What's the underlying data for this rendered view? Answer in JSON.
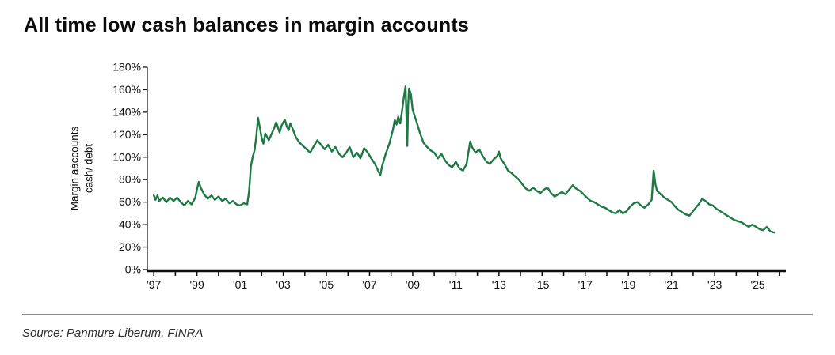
{
  "title": "All time low cash balances in margin accounts",
  "source": "Source: Panmure Liberum, FINRA",
  "chart_data": {
    "type": "line",
    "title": "All time low cash balances in margin accounts",
    "xlabel": "",
    "ylabel": "Margin aaccounts\ncash/ debt",
    "ylim": [
      0,
      180
    ],
    "xlim": [
      1996.7,
      2026.3
    ],
    "grid": false,
    "legend": null,
    "line_color": "#1e7a45",
    "y_ticks": [
      "0%",
      "20%",
      "40%",
      "60%",
      "80%",
      "100%",
      "120%",
      "140%",
      "160%",
      "180%"
    ],
    "x_tick_years": [
      1997,
      1999,
      2001,
      2003,
      2005,
      2007,
      2009,
      2011,
      2013,
      2015,
      2017,
      2019,
      2021,
      2023,
      2025
    ],
    "x_tick_labels": [
      "'97",
      "'99",
      "'01",
      "'03",
      "'05",
      "'07",
      "'09",
      "'11",
      "'13",
      "'15",
      "'17",
      "'19",
      "'21",
      "'23",
      "'25"
    ],
    "series": [
      {
        "name": "Margin accounts cash/debt",
        "points": [
          [
            1997.0,
            66
          ],
          [
            1997.08,
            62
          ],
          [
            1997.17,
            66
          ],
          [
            1997.25,
            61
          ],
          [
            1997.42,
            64
          ],
          [
            1997.58,
            60
          ],
          [
            1997.75,
            64
          ],
          [
            1997.92,
            61
          ],
          [
            1998.08,
            64
          ],
          [
            1998.25,
            60
          ],
          [
            1998.42,
            57
          ],
          [
            1998.58,
            61
          ],
          [
            1998.75,
            58
          ],
          [
            1998.92,
            64
          ],
          [
            1999.0,
            71
          ],
          [
            1999.08,
            78
          ],
          [
            1999.17,
            73
          ],
          [
            1999.33,
            67
          ],
          [
            1999.5,
            63
          ],
          [
            1999.67,
            66
          ],
          [
            1999.83,
            62
          ],
          [
            2000.0,
            65
          ],
          [
            2000.17,
            61
          ],
          [
            2000.33,
            63
          ],
          [
            2000.5,
            59
          ],
          [
            2000.67,
            61
          ],
          [
            2000.83,
            58
          ],
          [
            2001.0,
            57
          ],
          [
            2001.17,
            59
          ],
          [
            2001.33,
            58
          ],
          [
            2001.42,
            70
          ],
          [
            2001.5,
            92
          ],
          [
            2001.58,
            100
          ],
          [
            2001.67,
            106
          ],
          [
            2001.75,
            118
          ],
          [
            2001.83,
            135
          ],
          [
            2001.92,
            126
          ],
          [
            2002.0,
            117
          ],
          [
            2002.08,
            112
          ],
          [
            2002.17,
            121
          ],
          [
            2002.33,
            115
          ],
          [
            2002.42,
            119
          ],
          [
            2002.58,
            126
          ],
          [
            2002.67,
            131
          ],
          [
            2002.75,
            127
          ],
          [
            2002.83,
            122
          ],
          [
            2002.92,
            128
          ],
          [
            2003.0,
            131
          ],
          [
            2003.08,
            133
          ],
          [
            2003.17,
            127
          ],
          [
            2003.25,
            124
          ],
          [
            2003.33,
            130
          ],
          [
            2003.42,
            126
          ],
          [
            2003.58,
            118
          ],
          [
            2003.75,
            113
          ],
          [
            2003.92,
            110
          ],
          [
            2004.08,
            107
          ],
          [
            2004.25,
            104
          ],
          [
            2004.42,
            110
          ],
          [
            2004.58,
            115
          ],
          [
            2004.75,
            111
          ],
          [
            2004.92,
            107
          ],
          [
            2005.08,
            111
          ],
          [
            2005.25,
            105
          ],
          [
            2005.42,
            109
          ],
          [
            2005.58,
            103
          ],
          [
            2005.75,
            100
          ],
          [
            2005.92,
            104
          ],
          [
            2006.08,
            109
          ],
          [
            2006.25,
            100
          ],
          [
            2006.42,
            104
          ],
          [
            2006.58,
            99
          ],
          [
            2006.75,
            108
          ],
          [
            2006.92,
            104
          ],
          [
            2007.08,
            99
          ],
          [
            2007.25,
            94
          ],
          [
            2007.42,
            87
          ],
          [
            2007.5,
            84
          ],
          [
            2007.58,
            92
          ],
          [
            2007.75,
            103
          ],
          [
            2007.92,
            112
          ],
          [
            2008.08,
            124
          ],
          [
            2008.17,
            133
          ],
          [
            2008.25,
            129
          ],
          [
            2008.33,
            136
          ],
          [
            2008.42,
            130
          ],
          [
            2008.5,
            140
          ],
          [
            2008.58,
            152
          ],
          [
            2008.67,
            163
          ],
          [
            2008.71,
            138
          ],
          [
            2008.75,
            110
          ],
          [
            2008.79,
            146
          ],
          [
            2008.83,
            161
          ],
          [
            2008.92,
            156
          ],
          [
            2009.0,
            142
          ],
          [
            2009.17,
            132
          ],
          [
            2009.33,
            122
          ],
          [
            2009.5,
            113
          ],
          [
            2009.67,
            109
          ],
          [
            2009.83,
            106
          ],
          [
            2010.0,
            104
          ],
          [
            2010.17,
            99
          ],
          [
            2010.33,
            103
          ],
          [
            2010.5,
            97
          ],
          [
            2010.67,
            93
          ],
          [
            2010.83,
            91
          ],
          [
            2011.0,
            96
          ],
          [
            2011.17,
            90
          ],
          [
            2011.33,
            88
          ],
          [
            2011.5,
            94
          ],
          [
            2011.58,
            104
          ],
          [
            2011.67,
            114
          ],
          [
            2011.75,
            109
          ],
          [
            2011.92,
            104
          ],
          [
            2012.08,
            107
          ],
          [
            2012.25,
            101
          ],
          [
            2012.42,
            96
          ],
          [
            2012.58,
            94
          ],
          [
            2012.75,
            98
          ],
          [
            2012.92,
            101
          ],
          [
            2013.0,
            105
          ],
          [
            2013.08,
            99
          ],
          [
            2013.25,
            94
          ],
          [
            2013.42,
            88
          ],
          [
            2013.58,
            86
          ],
          [
            2013.75,
            83
          ],
          [
            2013.92,
            80
          ],
          [
            2014.08,
            76
          ],
          [
            2014.25,
            72
          ],
          [
            2014.42,
            70
          ],
          [
            2014.58,
            73
          ],
          [
            2014.75,
            70
          ],
          [
            2014.92,
            68
          ],
          [
            2015.08,
            71
          ],
          [
            2015.25,
            73
          ],
          [
            2015.42,
            68
          ],
          [
            2015.58,
            65
          ],
          [
            2015.75,
            67
          ],
          [
            2015.92,
            69
          ],
          [
            2016.08,
            67
          ],
          [
            2016.25,
            71
          ],
          [
            2016.42,
            75
          ],
          [
            2016.58,
            72
          ],
          [
            2016.75,
            70
          ],
          [
            2016.92,
            67
          ],
          [
            2017.08,
            64
          ],
          [
            2017.25,
            61
          ],
          [
            2017.42,
            60
          ],
          [
            2017.58,
            58
          ],
          [
            2017.75,
            56
          ],
          [
            2017.92,
            55
          ],
          [
            2018.08,
            53
          ],
          [
            2018.25,
            51
          ],
          [
            2018.42,
            50
          ],
          [
            2018.58,
            53
          ],
          [
            2018.75,
            50
          ],
          [
            2018.92,
            52
          ],
          [
            2019.08,
            56
          ],
          [
            2019.25,
            59
          ],
          [
            2019.42,
            60
          ],
          [
            2019.58,
            57
          ],
          [
            2019.75,
            55
          ],
          [
            2019.92,
            58
          ],
          [
            2020.08,
            62
          ],
          [
            2020.17,
            88
          ],
          [
            2020.25,
            76
          ],
          [
            2020.33,
            70
          ],
          [
            2020.5,
            67
          ],
          [
            2020.67,
            64
          ],
          [
            2020.83,
            62
          ],
          [
            2021.0,
            60
          ],
          [
            2021.17,
            56
          ],
          [
            2021.33,
            53
          ],
          [
            2021.5,
            51
          ],
          [
            2021.67,
            49
          ],
          [
            2021.83,
            48
          ],
          [
            2022.0,
            52
          ],
          [
            2022.17,
            56
          ],
          [
            2022.33,
            60
          ],
          [
            2022.42,
            63
          ],
          [
            2022.58,
            61
          ],
          [
            2022.75,
            58
          ],
          [
            2022.92,
            57
          ],
          [
            2023.08,
            54
          ],
          [
            2023.25,
            52
          ],
          [
            2023.42,
            50
          ],
          [
            2023.58,
            48
          ],
          [
            2023.75,
            46
          ],
          [
            2023.92,
            44
          ],
          [
            2024.08,
            43
          ],
          [
            2024.25,
            42
          ],
          [
            2024.42,
            40
          ],
          [
            2024.58,
            38
          ],
          [
            2024.75,
            40
          ],
          [
            2024.92,
            38
          ],
          [
            2025.08,
            36
          ],
          [
            2025.25,
            35
          ],
          [
            2025.42,
            38
          ],
          [
            2025.58,
            34
          ],
          [
            2025.75,
            33
          ]
        ]
      }
    ]
  }
}
